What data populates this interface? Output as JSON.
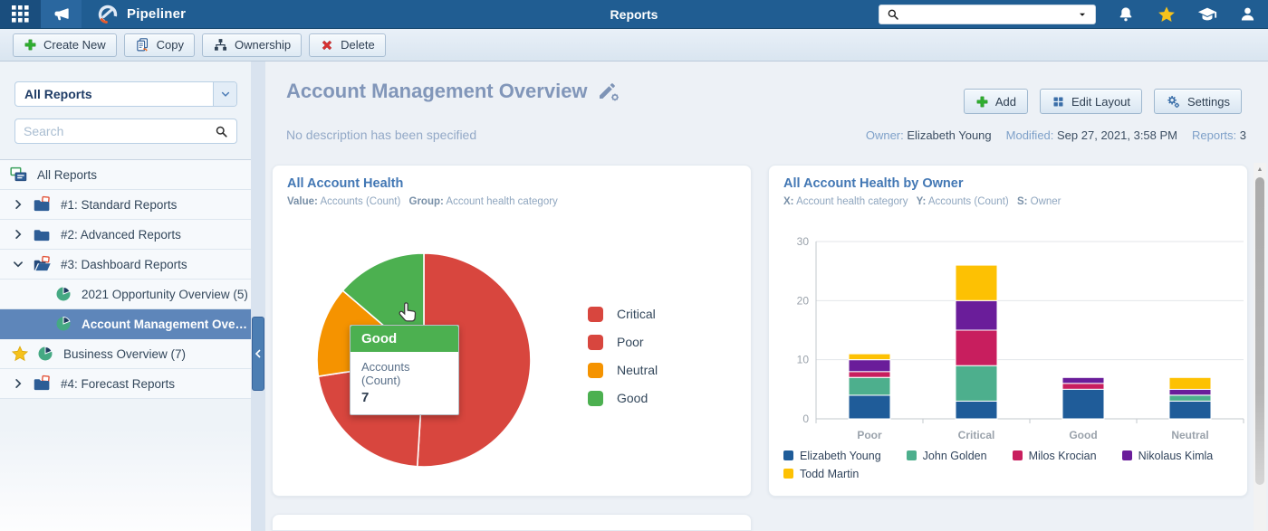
{
  "navbar": {
    "app_title": "Pipeliner",
    "page_title": "Reports"
  },
  "toolbar": {
    "buttons": [
      {
        "label": "Create New",
        "icon": "plus-icon"
      },
      {
        "label": "Copy",
        "icon": "copy-icon"
      },
      {
        "label": "Ownership",
        "icon": "ownership-icon"
      },
      {
        "label": "Delete",
        "icon": "delete-icon"
      }
    ]
  },
  "sidebar": {
    "filter_value": "All Reports",
    "search_placeholder": "Search",
    "tree": [
      {
        "label": "All Reports",
        "icon": "reports-stack",
        "level": "root"
      },
      {
        "label": "#1: Standard Reports",
        "icon": "folder-docs",
        "chevron": "collapsed"
      },
      {
        "label": "#2: Advanced Reports",
        "icon": "folder",
        "chevron": "collapsed"
      },
      {
        "label": "#3: Dashboard Reports",
        "icon": "folder-docs-open",
        "chevron": "expanded"
      },
      {
        "label": "2021 Opportunity Overview (5)",
        "icon": "pie",
        "level": "sub"
      },
      {
        "label": "Account Management Overvie...",
        "icon": "pie",
        "level": "sub",
        "selected": true
      },
      {
        "label": "Business Overview (7)",
        "icon": "pie",
        "level": "sub",
        "starred": true
      },
      {
        "label": "#4: Forecast Reports",
        "icon": "folder-docs",
        "chevron": "collapsed"
      }
    ]
  },
  "header": {
    "title": "Account Management Overview",
    "description": "No description has been specified",
    "buttons": [
      {
        "label": "Add",
        "icon": "plus-icon"
      },
      {
        "label": "Edit Layout",
        "icon": "layout-icon"
      },
      {
        "label": "Settings",
        "icon": "gears-icon"
      }
    ],
    "meta": [
      {
        "label": "Owner:",
        "value": "Elizabeth Young"
      },
      {
        "label": "Modified:",
        "value": "Sep 27, 2021, 3:58 PM"
      },
      {
        "label": "Reports:",
        "value": "3"
      }
    ]
  },
  "chart_data": [
    {
      "type": "pie",
      "title": "All Account Health",
      "subtitle_parts": [
        {
          "label": "Value:",
          "value": "Accounts (Count)"
        },
        {
          "label": "Group:",
          "value": "Account health category"
        }
      ],
      "value_label": "Accounts (Count)",
      "group_label": "Account health category",
      "categories": [
        "Critical",
        "Poor",
        "Neutral",
        "Good"
      ],
      "values": [
        26,
        11,
        7,
        7
      ],
      "colors": [
        "#d8463e",
        "#d8463e",
        "#f59300",
        "#4cb050"
      ],
      "legend_position": "right",
      "tooltip": {
        "title": "Good",
        "metric": "Accounts (Count)",
        "value": "7",
        "color": "#4cb050"
      }
    },
    {
      "type": "bar",
      "stacked": true,
      "title": "All Account Health by Owner",
      "subtitle_parts": [
        {
          "label": "X:",
          "value": "Account health category"
        },
        {
          "label": "Y:",
          "value": "Accounts (Count)"
        },
        {
          "label": "S:",
          "value": "Owner"
        }
      ],
      "xlabel": "Account health category",
      "ylabel": "Accounts (Count)",
      "categories": [
        "Poor",
        "Critical",
        "Good",
        "Neutral"
      ],
      "series": [
        {
          "name": "Elizabeth Young",
          "color": "#1f5c99",
          "values": [
            4,
            3,
            5,
            3
          ]
        },
        {
          "name": "John Golden",
          "color": "#4daf8d",
          "values": [
            3,
            6,
            0,
            1
          ]
        },
        {
          "name": "Milos Krocian",
          "color": "#c81e5e",
          "values": [
            1,
            6,
            1,
            0
          ]
        },
        {
          "name": "Nikolaus Kimla",
          "color": "#6a1d9a",
          "values": [
            2,
            5,
            1,
            1
          ]
        },
        {
          "name": "Todd Martin",
          "color": "#fdc103",
          "values": [
            1,
            6,
            0,
            2
          ]
        }
      ],
      "ylim": [
        0,
        30
      ],
      "yticks": [
        0,
        10,
        20,
        30
      ],
      "grid": true,
      "legend_position": "bottom"
    }
  ]
}
